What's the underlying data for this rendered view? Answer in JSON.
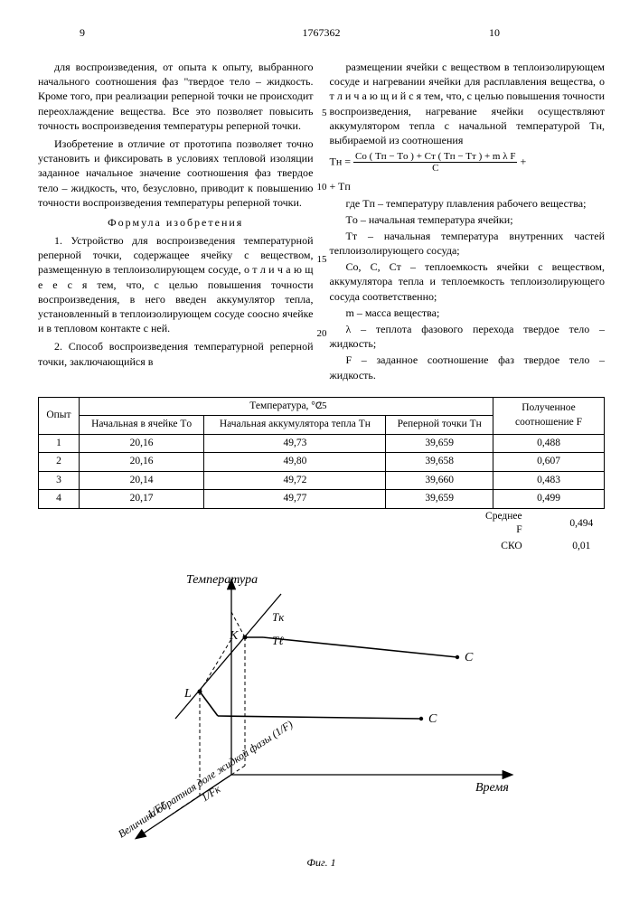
{
  "header": {
    "page_left": "9",
    "patent_number": "1767362",
    "page_right": "10"
  },
  "line_numbers": {
    "l5": "5",
    "l10": "10",
    "l15": "15",
    "l20": "20",
    "l25": "25"
  },
  "left_col": {
    "p1": "для воспроизведения, от опыта к опыту, выбранного начального соотношения фаз \"твердое тело – жидкость. Кроме того, при реализации реперной точки не происходит переохлаждение вещества. Все это позволяет повысить точность воспроизведения температуры реперной точки.",
    "p2": "Изобретение в отличие от прототипа позволяет точно установить и фиксировать в условиях тепловой изоляции заданное начальное значение соотношения фаз твердое тело – жидкость, что, безусловно, приводит к повышению точности воспроизведения температуры реперной точки.",
    "formula_title": "Формула изобретения",
    "claim1": "1. Устройство для воспроизведения температурной реперной точки, содержащее ячейку с веществом, размещенную в теплоизолирующем сосуде, о т л и ч а ю щ е е с я  тем, что, с целью повышения точности воспроизведения, в него введен аккумулятор тепла, установленный в теплоизолирующем сосуде соосно ячейке и в тепловом контакте с ней.",
    "claim2": "2. Способ воспроизведения температурной реперной точки, заключающийся в"
  },
  "right_col": {
    "p1": "размещении ячейки с веществом в теплоизолирующем сосуде и нагревании ячейки для расплавления вещества, о т л и ч а ю щ и й с я  тем, что, с целью повышения точности воспроизведения, нагревание ячейки осуществляют аккумулятором тепла с начальной температурой Tн, выбираемой из соотношения",
    "eq_lhs": "Tн =",
    "eq_num": "Cо ( Tп − Tо ) + Cт ( Tп − Tт ) + m λ F",
    "eq_den": "C",
    "eq_tail": "+ Tп",
    "def1": "где Tп – температуру плавления рабочего вещества;",
    "def2": "Tо – начальная температура ячейки;",
    "def3": "Tт – начальная температура внутренних частей теплоизолирующего сосуда;",
    "def4": "Cо, C, Cт – теплоемкость ячейки с веществом, аккумулятора тепла и теплоемкость теплоизолирующего сосуда соответственно;",
    "def5": "m – масса вещества;",
    "def6": "λ – теплота фазового перехода твердое тело – жидкость;",
    "def7": "F – заданное соотношение фаз твердое тело – жидкость."
  },
  "table": {
    "col_opyt": "Опыт",
    "col_temp": "Температура, °C",
    "col_res": "Полученное соотношение F",
    "sub_to": "Начальная в ячейке Tо",
    "sub_th": "Начальная аккумулятора тепла Tн",
    "sub_tn": "Реперной точки Tн",
    "rows": [
      {
        "n": "1",
        "to": "20,16",
        "th": "49,73",
        "tn": "39,659",
        "f": "0,488"
      },
      {
        "n": "2",
        "to": "20,16",
        "th": "49,80",
        "tn": "39,658",
        "f": "0,607"
      },
      {
        "n": "3",
        "to": "20,14",
        "th": "49,72",
        "tn": "39,660",
        "f": "0,483"
      },
      {
        "n": "4",
        "to": "20,17",
        "th": "49,77",
        "tn": "39,659",
        "f": "0,499"
      }
    ],
    "avg_label": "Среднее F",
    "avg_value": "0,494",
    "sko_label": "СКО",
    "sko_value": "0,01"
  },
  "figure": {
    "y_axis_label": "Температура",
    "x_axis_label": "Время",
    "z_axis_label": "Величина обратная доле жидкой фазы (1/F)",
    "pt_K": "K",
    "pt_L": "L",
    "pt_Tk": "Tк",
    "pt_Tl": "Tℓ",
    "pt_C1": "C",
    "pt_C2": "C",
    "tick_1Fk": "1/Fк",
    "tick_1Fl": "1/Fℓ",
    "caption": "Фиг. 1",
    "colors": {
      "stroke": "#000000",
      "dash": "#000000",
      "bg": "#ffffff"
    },
    "line_width": 1.3
  }
}
